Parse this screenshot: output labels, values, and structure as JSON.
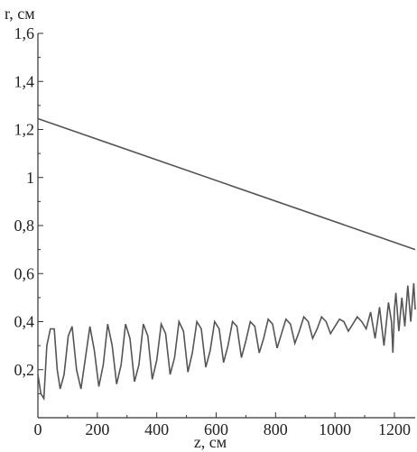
{
  "chart_data": {
    "type": "line",
    "title": "",
    "xlabel": "z, см",
    "ylabel": "r, см",
    "xlim": [
      0,
      1270
    ],
    "ylim": [
      0,
      1.6
    ],
    "x_ticks": [
      0,
      200,
      400,
      600,
      800,
      1000,
      1200
    ],
    "x_tick_labels": [
      "0",
      "200",
      "400",
      "600",
      "800",
      "1000",
      "1200"
    ],
    "y_ticks": [
      0.2,
      0.4,
      0.6,
      0.8,
      1.0,
      1.2,
      1.4,
      1.6
    ],
    "y_tick_labels": [
      "0,2",
      "0,4",
      "0,6",
      "0,8",
      "1",
      "1,2",
      "1,4",
      "1,6"
    ],
    "grid": false,
    "series": [
      {
        "color": "#666666",
        "x": [
          0,
          1270
        ],
        "y": [
          1.245,
          0.7
        ]
      },
      {
        "color": "#555555",
        "x": [
          0,
          10,
          20,
          30,
          42,
          55,
          65,
          75,
          88,
          102,
          115,
          130,
          145,
          160,
          175,
          190,
          205,
          220,
          235,
          250,
          265,
          280,
          295,
          310,
          325,
          340,
          355,
          370,
          385,
          400,
          415,
          430,
          445,
          460,
          475,
          490,
          505,
          520,
          535,
          550,
          565,
          580,
          595,
          610,
          625,
          640,
          655,
          670,
          685,
          700,
          715,
          730,
          745,
          760,
          775,
          790,
          805,
          820,
          835,
          850,
          865,
          880,
          895,
          910,
          925,
          940,
          955,
          970,
          985,
          1000,
          1015,
          1030,
          1045,
          1060,
          1075,
          1090,
          1105,
          1120,
          1135,
          1150,
          1165,
          1180,
          1190,
          1195,
          1200,
          1205,
          1215,
          1225,
          1235,
          1245,
          1255,
          1265,
          1270
        ],
        "y": [
          0.18,
          0.1,
          0.08,
          0.3,
          0.37,
          0.37,
          0.2,
          0.12,
          0.18,
          0.34,
          0.38,
          0.2,
          0.12,
          0.25,
          0.38,
          0.28,
          0.13,
          0.22,
          0.39,
          0.3,
          0.14,
          0.22,
          0.39,
          0.33,
          0.15,
          0.22,
          0.39,
          0.34,
          0.16,
          0.24,
          0.39,
          0.35,
          0.18,
          0.25,
          0.4,
          0.36,
          0.19,
          0.27,
          0.4,
          0.37,
          0.21,
          0.28,
          0.4,
          0.37,
          0.23,
          0.3,
          0.4,
          0.38,
          0.25,
          0.32,
          0.4,
          0.38,
          0.27,
          0.33,
          0.41,
          0.39,
          0.29,
          0.35,
          0.41,
          0.39,
          0.31,
          0.36,
          0.42,
          0.4,
          0.33,
          0.37,
          0.42,
          0.4,
          0.35,
          0.38,
          0.41,
          0.4,
          0.36,
          0.39,
          0.42,
          0.4,
          0.37,
          0.44,
          0.33,
          0.46,
          0.3,
          0.48,
          0.4,
          0.27,
          0.45,
          0.52,
          0.36,
          0.5,
          0.38,
          0.55,
          0.4,
          0.56,
          0.45
        ]
      }
    ]
  }
}
